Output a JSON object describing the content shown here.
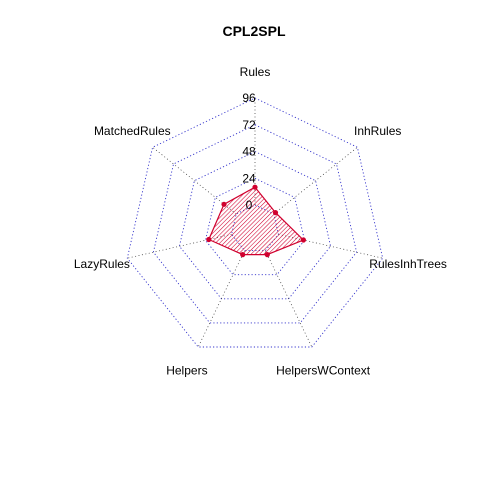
{
  "chart_data": {
    "type": "radar",
    "title": "CPL2SPL",
    "axes": [
      "Rules",
      "InhRules",
      "RulesInhTrees",
      "HelpersWContext",
      "Helpers",
      "LazyRules",
      "MatchedRules"
    ],
    "r_ticks": [
      0,
      24,
      48,
      72,
      96
    ],
    "r_tick_labels": [
      "0",
      "24",
      "48",
      "72",
      "96"
    ],
    "r_lim": [
      0,
      96
    ],
    "grid": true,
    "series": [
      {
        "values": [
          16,
          2,
          23,
          4,
          4,
          21,
          14
        ],
        "color": "#d0002e",
        "fill": "hatched"
      }
    ],
    "colors": {
      "grid": "#3333cc",
      "series": "#d0002e"
    }
  }
}
